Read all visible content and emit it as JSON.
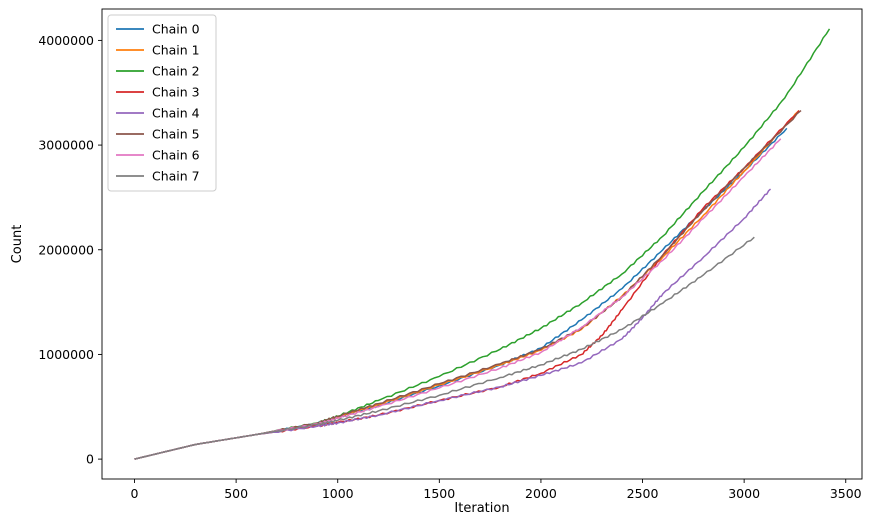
{
  "chart_data": {
    "type": "line",
    "title": "",
    "xlabel": "Iteration",
    "ylabel": "Count",
    "xlim": [
      -160,
      3580
    ],
    "ylim": [
      -190000,
      4300000
    ],
    "xticks": [
      0,
      500,
      1000,
      1500,
      2000,
      2500,
      3000,
      3500
    ],
    "xtick_labels": [
      "0",
      "500",
      "1000",
      "1500",
      "2000",
      "2500",
      "3000",
      "3500"
    ],
    "yticks": [
      0,
      1000000,
      2000000,
      3000000,
      4000000
    ],
    "ytick_labels": [
      "0",
      "1000000",
      "2000000",
      "3000000",
      "4000000"
    ],
    "grid": false,
    "legend": "top-left",
    "series": [
      {
        "name": "Chain 0",
        "color": "#1f77b4",
        "x": [
          0,
          300,
          600,
          900,
          1000,
          1200,
          1500,
          1800,
          2000,
          2200,
          2400,
          2600,
          2800,
          3000,
          3210
        ],
        "y": [
          0,
          140000,
          235000,
          340000,
          400000,
          510000,
          700000,
          900000,
          1060000,
          1330000,
          1630000,
          2000000,
          2380000,
          2750000,
          3160000
        ]
      },
      {
        "name": "Chain 1",
        "color": "#ff7f0e",
        "x": [
          0,
          300,
          600,
          900,
          1000,
          1200,
          1500,
          1800,
          2000,
          2200,
          2400,
          2600,
          2800,
          3000,
          3270
        ],
        "y": [
          0,
          140000,
          235000,
          340000,
          400000,
          520000,
          710000,
          900000,
          1040000,
          1240000,
          1560000,
          1930000,
          2330000,
          2750000,
          3330000
        ]
      },
      {
        "name": "Chain 2",
        "color": "#2ca02c",
        "x": [
          0,
          300,
          600,
          900,
          1000,
          1200,
          1500,
          1800,
          2000,
          2200,
          2400,
          2600,
          2800,
          3000,
          3200,
          3420
        ],
        "y": [
          0,
          140000,
          235000,
          345000,
          410000,
          560000,
          790000,
          1050000,
          1250000,
          1490000,
          1770000,
          2130000,
          2560000,
          2980000,
          3450000,
          4110000
        ]
      },
      {
        "name": "Chain 3",
        "color": "#d62728",
        "x": [
          0,
          300,
          600,
          900,
          1000,
          1200,
          1500,
          1800,
          2000,
          2200,
          2300,
          2400,
          2600,
          2800,
          3000,
          3270
        ],
        "y": [
          0,
          140000,
          235000,
          315000,
          350000,
          420000,
          560000,
          690000,
          820000,
          1000000,
          1180000,
          1430000,
          1950000,
          2400000,
          2780000,
          3330000
        ]
      },
      {
        "name": "Chain 4",
        "color": "#9467bd",
        "x": [
          0,
          300,
          600,
          900,
          1000,
          1200,
          1500,
          1800,
          2000,
          2200,
          2400,
          2500,
          2600,
          2800,
          3000,
          3130
        ],
        "y": [
          0,
          140000,
          235000,
          315000,
          345000,
          420000,
          560000,
          690000,
          800000,
          920000,
          1150000,
          1350000,
          1580000,
          1930000,
          2300000,
          2580000
        ]
      },
      {
        "name": "Chain 5",
        "color": "#8c564b",
        "x": [
          0,
          300,
          600,
          900,
          1000,
          1200,
          1500,
          1800,
          2000,
          2200,
          2400,
          2600,
          2800,
          3000,
          3280
        ],
        "y": [
          0,
          140000,
          235000,
          345000,
          410000,
          530000,
          720000,
          910000,
          1050000,
          1250000,
          1550000,
          1950000,
          2380000,
          2780000,
          3330000
        ]
      },
      {
        "name": "Chain 6",
        "color": "#e377c2",
        "x": [
          0,
          300,
          600,
          900,
          1000,
          1200,
          1500,
          1800,
          2000,
          2200,
          2400,
          2600,
          2800,
          3000,
          3180
        ],
        "y": [
          0,
          140000,
          235000,
          335000,
          390000,
          500000,
          680000,
          870000,
          1020000,
          1260000,
          1550000,
          1900000,
          2300000,
          2700000,
          3060000
        ]
      },
      {
        "name": "Chain 7",
        "color": "#7f7f7f",
        "x": [
          0,
          300,
          600,
          900,
          1000,
          1200,
          1500,
          1800,
          2000,
          2200,
          2400,
          2600,
          2800,
          3050
        ],
        "y": [
          0,
          140000,
          235000,
          330000,
          370000,
          460000,
          610000,
          780000,
          900000,
          1050000,
          1240000,
          1490000,
          1760000,
          2120000
        ]
      }
    ]
  }
}
